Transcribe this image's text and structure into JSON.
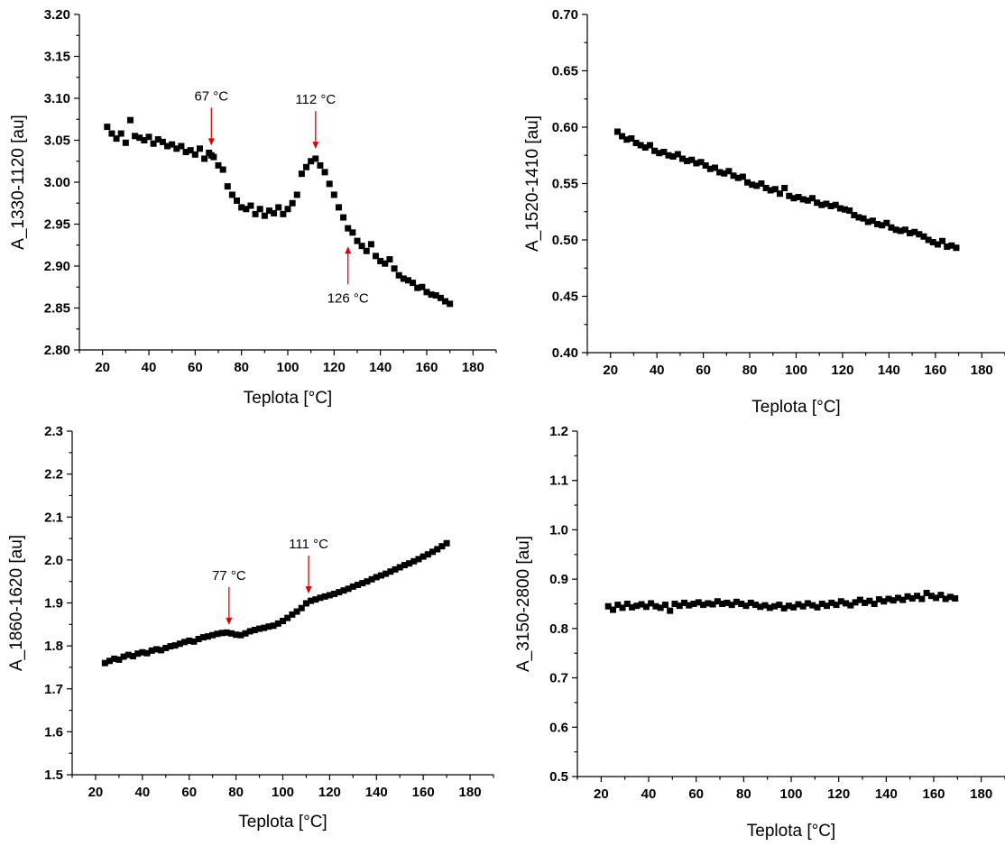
{
  "chart_data": [
    {
      "type": "scatter",
      "id": "top-left",
      "xlabel": "Teplota [°C]",
      "ylabel": "A_1330-1120 [au]",
      "xlim": [
        10,
        190
      ],
      "ylim": [
        2.8,
        3.2
      ],
      "xticks": [
        20,
        40,
        60,
        80,
        100,
        120,
        140,
        160,
        180
      ],
      "xtick_labels": [
        "20",
        "40",
        "60",
        "80",
        "100",
        "120",
        "140",
        "160",
        "180"
      ],
      "yticks": [
        2.8,
        2.85,
        2.9,
        2.95,
        3.0,
        3.05,
        3.1,
        3.15,
        3.2
      ],
      "ytick_labels": [
        "2.80",
        "2.85",
        "2.90",
        "2.95",
        "3.00",
        "3.05",
        "3.10",
        "3.15",
        "3.20"
      ],
      "grid": false,
      "series": [
        {
          "x": [
            22,
            24,
            26,
            28,
            30,
            32,
            34,
            36,
            38,
            40,
            42,
            44,
            46,
            48,
            50,
            52,
            54,
            56,
            58,
            60,
            62,
            64,
            66,
            67,
            68,
            70,
            72,
            74,
            76,
            78,
            80,
            82,
            84,
            86,
            88,
            90,
            92,
            94,
            96,
            98,
            100,
            102,
            104,
            106,
            108,
            110,
            112,
            114,
            116,
            118,
            120,
            122,
            124,
            126,
            128,
            130,
            132,
            134,
            136,
            138,
            140,
            142,
            144,
            146,
            148,
            150,
            152,
            154,
            156,
            158,
            160,
            162,
            164,
            166,
            168,
            170
          ],
          "y": [
            3.066,
            3.058,
            3.052,
            3.058,
            3.047,
            3.074,
            3.055,
            3.053,
            3.05,
            3.054,
            3.046,
            3.051,
            3.048,
            3.043,
            3.045,
            3.04,
            3.043,
            3.036,
            3.038,
            3.033,
            3.04,
            3.028,
            3.035,
            3.032,
            3.03,
            3.02,
            3.015,
            2.995,
            2.985,
            2.978,
            2.97,
            2.968,
            2.972,
            2.962,
            2.968,
            2.96,
            2.966,
            2.963,
            2.97,
            2.962,
            2.968,
            2.975,
            2.985,
            3.01,
            3.018,
            3.025,
            3.028,
            3.02,
            3.012,
            2.998,
            2.985,
            2.97,
            2.958,
            2.945,
            2.94,
            2.93,
            2.924,
            2.918,
            2.926,
            2.912,
            2.906,
            2.903,
            2.908,
            2.897,
            2.889,
            2.885,
            2.883,
            2.88,
            2.874,
            2.875,
            2.869,
            2.866,
            2.865,
            2.862,
            2.858,
            2.855
          ]
        }
      ],
      "annotations": [
        {
          "label": "67 °C",
          "x": 67,
          "y": 3.034,
          "direction": "down"
        },
        {
          "label": "112 °C",
          "x": 112,
          "y": 3.03,
          "direction": "down"
        },
        {
          "label": "126 °C",
          "x": 126,
          "y": 2.933,
          "direction": "up"
        }
      ]
    },
    {
      "type": "scatter",
      "id": "top-right",
      "xlabel": "Teplota [°C]",
      "ylabel": "A_1520-1410 [au]",
      "xlim": [
        10,
        190
      ],
      "ylim": [
        0.4,
        0.7
      ],
      "xticks": [
        20,
        40,
        60,
        80,
        100,
        120,
        140,
        160,
        180
      ],
      "xtick_labels": [
        "20",
        "40",
        "60",
        "80",
        "100",
        "120",
        "140",
        "160",
        "180"
      ],
      "yticks": [
        0.4,
        0.45,
        0.5,
        0.55,
        0.6,
        0.65,
        0.7
      ],
      "ytick_labels": [
        "0.40",
        "0.45",
        "0.50",
        "0.55",
        "0.60",
        "0.65",
        "0.70"
      ],
      "grid": false,
      "series": [
        {
          "x": [
            23,
            25,
            27,
            29,
            31,
            33,
            35,
            37,
            39,
            41,
            43,
            45,
            47,
            49,
            51,
            53,
            55,
            57,
            59,
            61,
            63,
            65,
            67,
            69,
            71,
            73,
            75,
            77,
            79,
            81,
            83,
            85,
            87,
            89,
            91,
            93,
            95,
            97,
            99,
            101,
            103,
            105,
            107,
            109,
            111,
            113,
            115,
            117,
            119,
            121,
            123,
            125,
            127,
            129,
            131,
            133,
            135,
            137,
            139,
            141,
            143,
            145,
            147,
            149,
            151,
            153,
            155,
            157,
            159,
            161,
            163,
            165,
            167,
            169
          ],
          "y": [
            0.596,
            0.592,
            0.589,
            0.59,
            0.586,
            0.584,
            0.582,
            0.584,
            0.579,
            0.577,
            0.578,
            0.575,
            0.574,
            0.576,
            0.572,
            0.57,
            0.571,
            0.568,
            0.569,
            0.566,
            0.563,
            0.564,
            0.56,
            0.559,
            0.561,
            0.557,
            0.555,
            0.556,
            0.551,
            0.549,
            0.548,
            0.55,
            0.546,
            0.544,
            0.545,
            0.541,
            0.546,
            0.539,
            0.537,
            0.538,
            0.536,
            0.535,
            0.537,
            0.533,
            0.531,
            0.532,
            0.53,
            0.531,
            0.528,
            0.527,
            0.526,
            0.522,
            0.52,
            0.519,
            0.516,
            0.517,
            0.514,
            0.513,
            0.515,
            0.511,
            0.509,
            0.508,
            0.509,
            0.506,
            0.507,
            0.505,
            0.503,
            0.5,
            0.498,
            0.496,
            0.499,
            0.494,
            0.495,
            0.493
          ]
        }
      ],
      "annotations": []
    },
    {
      "type": "scatter",
      "id": "bottom-left",
      "xlabel": "Teplota [°C]",
      "ylabel": "A_1860-1620 [au]",
      "xlim": [
        10,
        190
      ],
      "ylim": [
        1.5,
        2.3
      ],
      "xticks": [
        20,
        40,
        60,
        80,
        100,
        120,
        140,
        160,
        180
      ],
      "xtick_labels": [
        "20",
        "40",
        "60",
        "80",
        "100",
        "120",
        "140",
        "160",
        "180"
      ],
      "yticks": [
        1.5,
        1.6,
        1.7,
        1.8,
        1.9,
        2.0,
        2.1,
        2.2,
        2.3
      ],
      "ytick_labels": [
        "1.5",
        "1.6",
        "1.7",
        "1.8",
        "1.9",
        "2.0",
        "2.1",
        "2.2",
        "2.3"
      ],
      "grid": false,
      "series": [
        {
          "x": [
            24,
            26,
            28,
            30,
            32,
            34,
            36,
            38,
            40,
            42,
            44,
            46,
            48,
            50,
            52,
            54,
            56,
            58,
            60,
            62,
            64,
            66,
            68,
            70,
            72,
            74,
            76,
            78,
            80,
            82,
            84,
            86,
            88,
            90,
            92,
            94,
            96,
            98,
            100,
            102,
            104,
            106,
            108,
            110,
            112,
            114,
            116,
            118,
            120,
            122,
            124,
            126,
            128,
            130,
            132,
            134,
            136,
            138,
            140,
            142,
            144,
            146,
            148,
            150,
            152,
            154,
            156,
            158,
            160,
            162,
            164,
            166,
            168,
            170
          ],
          "y": [
            1.76,
            1.765,
            1.77,
            1.768,
            1.775,
            1.779,
            1.776,
            1.782,
            1.785,
            1.783,
            1.789,
            1.792,
            1.79,
            1.795,
            1.799,
            1.801,
            1.805,
            1.809,
            1.812,
            1.81,
            1.816,
            1.82,
            1.822,
            1.825,
            1.828,
            1.83,
            1.831,
            1.829,
            1.826,
            1.825,
            1.829,
            1.834,
            1.837,
            1.84,
            1.842,
            1.845,
            1.847,
            1.852,
            1.858,
            1.865,
            1.873,
            1.88,
            1.888,
            1.899,
            1.905,
            1.908,
            1.912,
            1.915,
            1.918,
            1.921,
            1.925,
            1.929,
            1.933,
            1.938,
            1.942,
            1.946,
            1.95,
            1.955,
            1.96,
            1.964,
            1.968,
            1.973,
            1.978,
            1.983,
            1.988,
            1.992,
            1.997,
            2.002,
            2.008,
            2.013,
            2.019,
            2.025,
            2.032,
            2.039
          ]
        }
      ],
      "annotations": [
        {
          "label": "77 °C",
          "x": 77,
          "y": 1.83,
          "direction": "down"
        },
        {
          "label": "111 °C",
          "x": 111,
          "y": 1.903,
          "direction": "down"
        }
      ]
    },
    {
      "type": "scatter",
      "id": "bottom-right",
      "xlabel": "Teplota [°C]",
      "ylabel": "A_3150-2800 [au]",
      "xlim": [
        10,
        190
      ],
      "ylim": [
        0.5,
        1.2
      ],
      "xticks": [
        20,
        40,
        60,
        80,
        100,
        120,
        140,
        160,
        180
      ],
      "xtick_labels": [
        "20",
        "40",
        "60",
        "80",
        "100",
        "120",
        "140",
        "160",
        "180"
      ],
      "yticks": [
        0.5,
        0.6,
        0.7,
        0.8,
        0.9,
        1.0,
        1.1,
        1.2
      ],
      "ytick_labels": [
        "0.5",
        "0.6",
        "0.7",
        "0.8",
        "0.9",
        "1.0",
        "1.1",
        "1.2"
      ],
      "grid": false,
      "series": [
        {
          "x": [
            23,
            25,
            27,
            29,
            31,
            33,
            35,
            37,
            39,
            41,
            43,
            45,
            47,
            49,
            51,
            53,
            55,
            57,
            59,
            61,
            63,
            65,
            67,
            69,
            71,
            73,
            75,
            77,
            79,
            81,
            83,
            85,
            87,
            89,
            91,
            93,
            95,
            97,
            99,
            101,
            103,
            105,
            107,
            109,
            111,
            113,
            115,
            117,
            119,
            121,
            123,
            125,
            127,
            129,
            131,
            133,
            135,
            137,
            139,
            141,
            143,
            145,
            147,
            149,
            151,
            153,
            155,
            157,
            159,
            161,
            163,
            165,
            167,
            169
          ],
          "y": [
            0.845,
            0.838,
            0.848,
            0.842,
            0.85,
            0.843,
            0.846,
            0.849,
            0.844,
            0.851,
            0.845,
            0.842,
            0.848,
            0.836,
            0.85,
            0.846,
            0.852,
            0.847,
            0.85,
            0.853,
            0.848,
            0.851,
            0.849,
            0.855,
            0.85,
            0.852,
            0.848,
            0.854,
            0.85,
            0.846,
            0.852,
            0.848,
            0.844,
            0.847,
            0.842,
            0.845,
            0.848,
            0.841,
            0.846,
            0.843,
            0.849,
            0.845,
            0.851,
            0.847,
            0.843,
            0.85,
            0.846,
            0.852,
            0.848,
            0.855,
            0.851,
            0.847,
            0.853,
            0.858,
            0.852,
            0.856,
            0.85,
            0.859,
            0.855,
            0.86,
            0.857,
            0.862,
            0.858,
            0.865,
            0.861,
            0.866,
            0.86,
            0.872,
            0.866,
            0.862,
            0.868,
            0.86,
            0.864,
            0.861
          ]
        }
      ],
      "annotations": []
    }
  ]
}
